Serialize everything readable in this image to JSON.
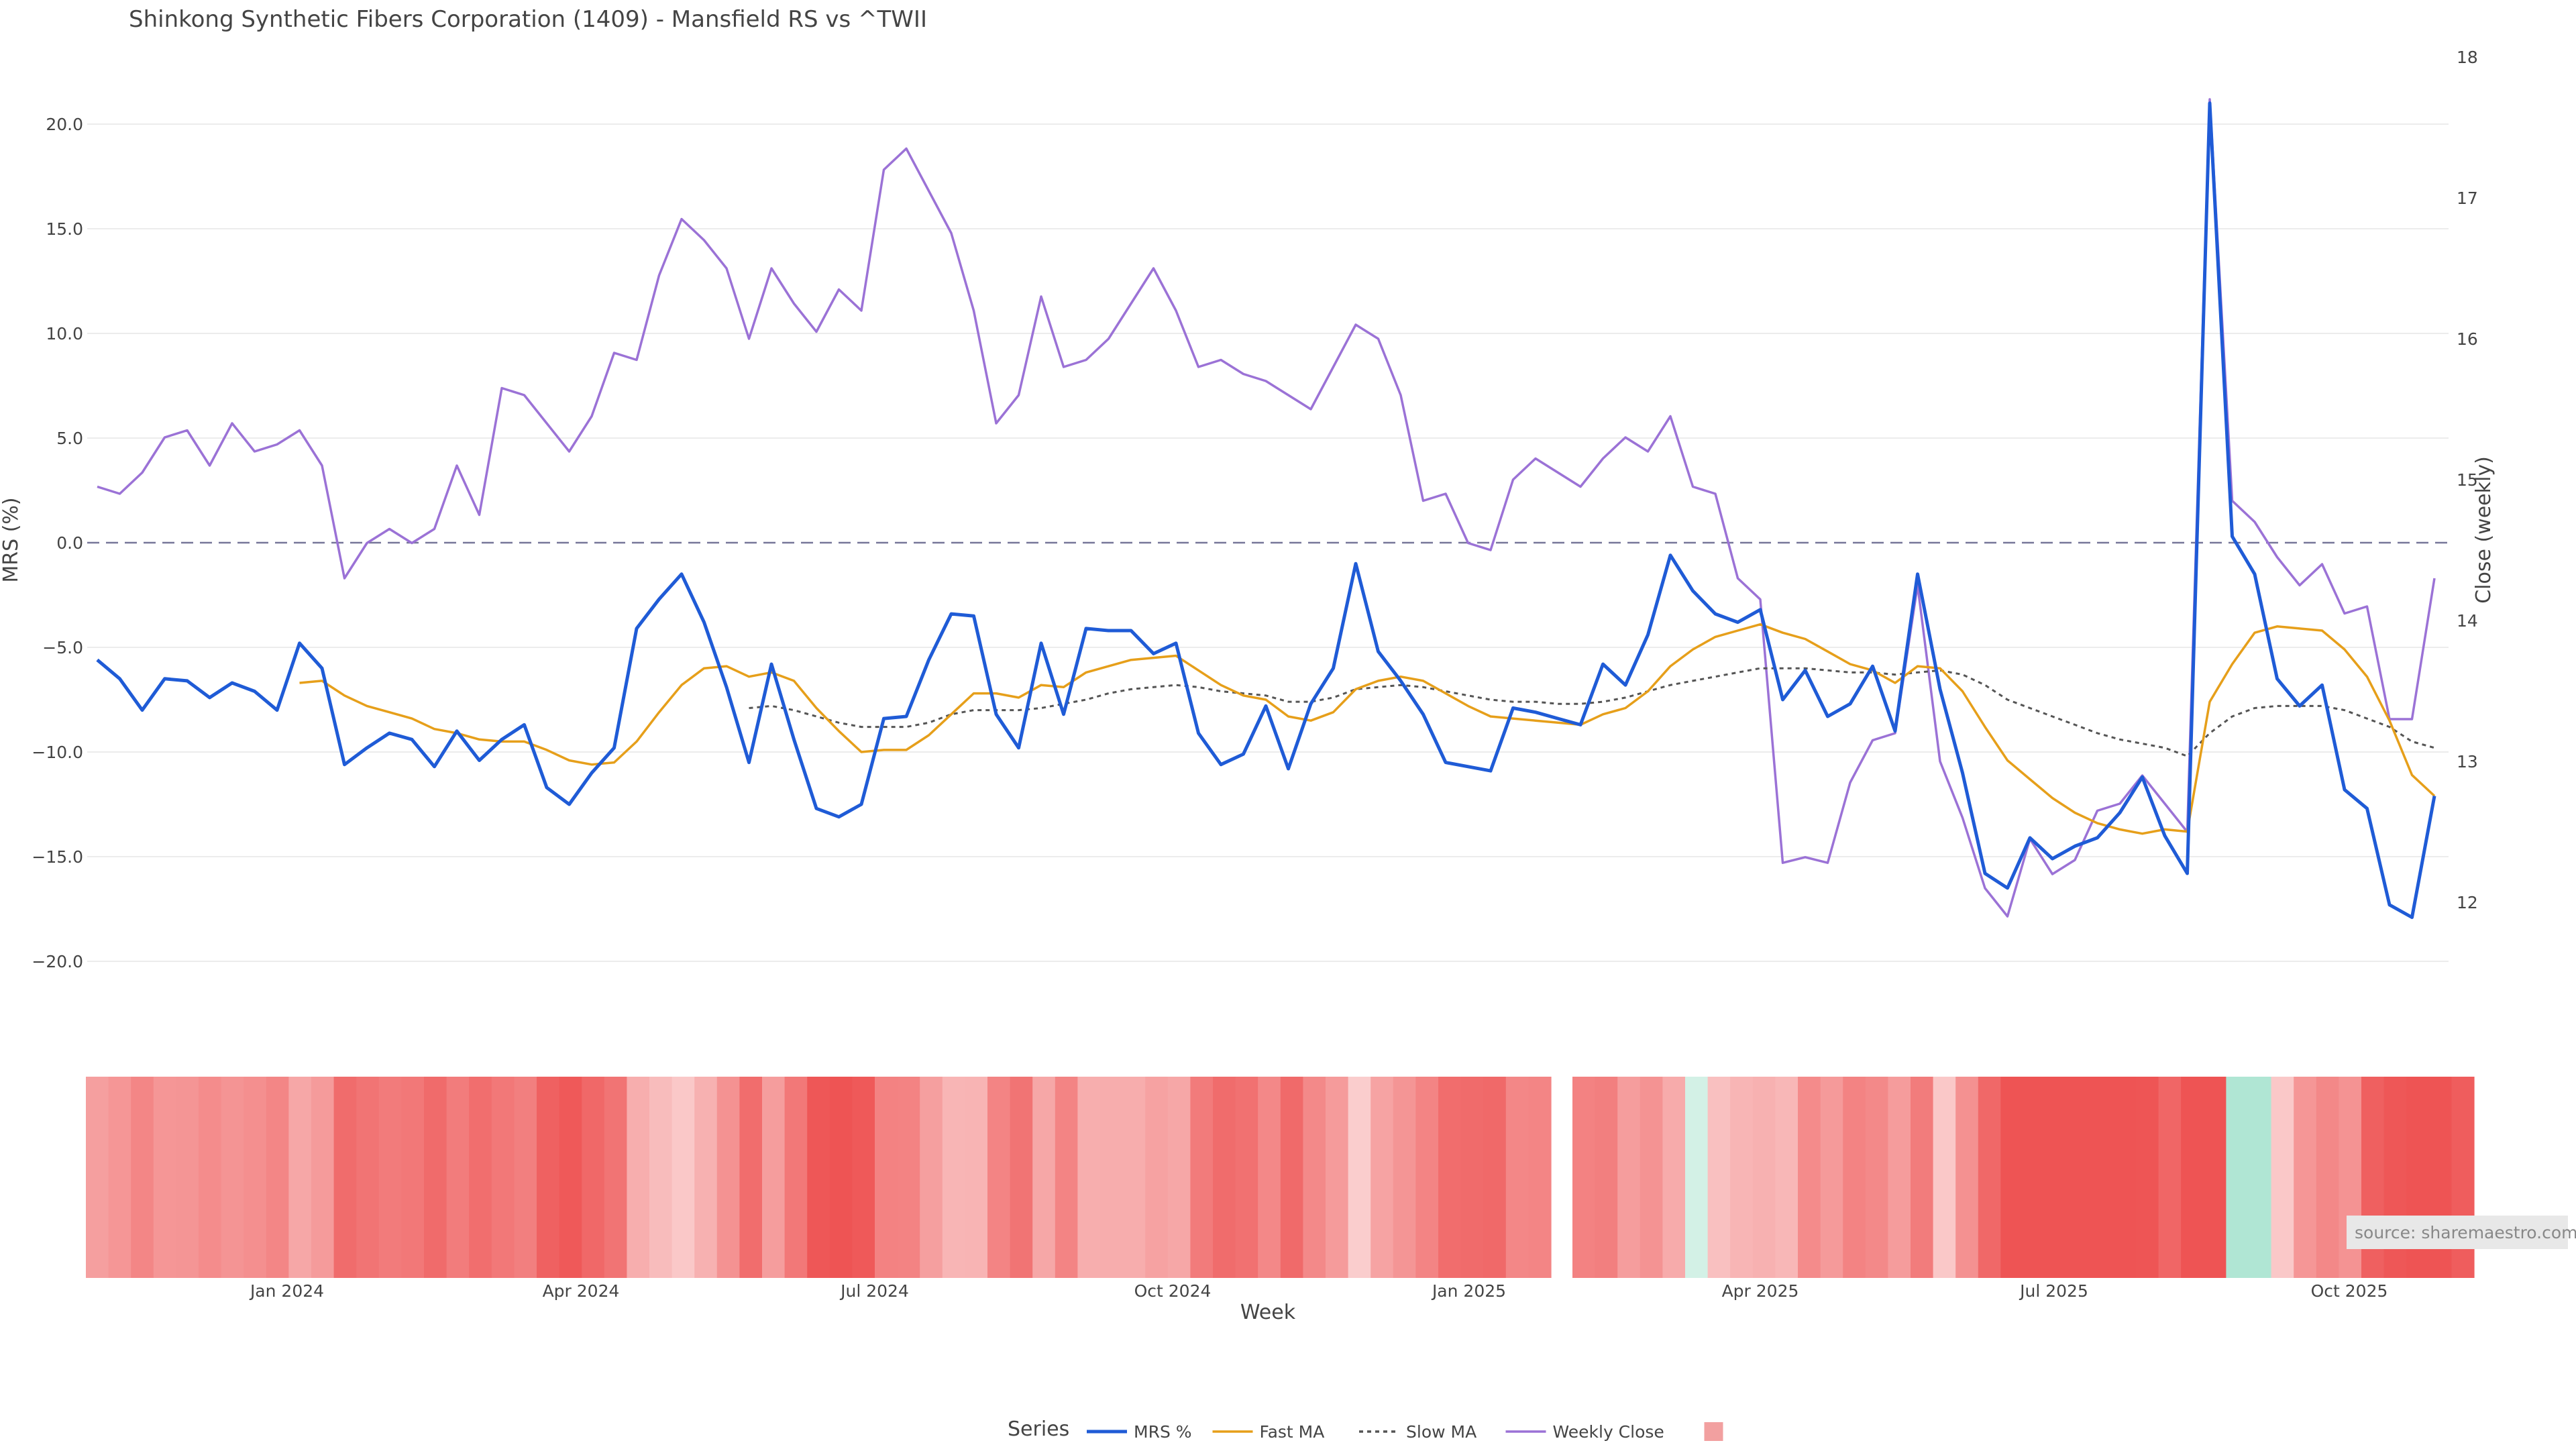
{
  "chart_data": {
    "type": "line",
    "title": "Shinkong Synthetic Fibers Corporation (1409) - Mansfield RS vs ^TWII",
    "xlabel": "Week",
    "ylabel": "MRS (%)",
    "y2label": "Close (weekly)",
    "ylim": [
      -24,
      22
    ],
    "y2lim": [
      11.5,
      18
    ],
    "yticks": [
      "20.0",
      "15.0",
      "10.0",
      "5.0",
      "0.0",
      "−5.0",
      "−10.0",
      "−15.0",
      "−20.0"
    ],
    "y2ticks": [
      "18",
      "17",
      "16",
      "15",
      "14",
      "13",
      "12"
    ],
    "xticks": [
      "Jan 2024",
      "Apr 2024",
      "Jul 2024",
      "Oct 2024",
      "Jan 2025",
      "Apr 2025",
      "Jul 2025",
      "Oct 2025"
    ],
    "x_start": "2023-11-06",
    "legend": {
      "title": "Series",
      "placement": "bottom-center"
    },
    "source_note": "source: sharemaestro.com",
    "zero_line": true,
    "series": [
      {
        "name": "MRS %",
        "color": "#1f5bd6",
        "style": "solid",
        "axis": "left",
        "values": [
          -5.6,
          -6.5,
          -8.0,
          -6.5,
          -6.6,
          -7.4,
          -6.7,
          -7.1,
          -8.0,
          -4.8,
          -6.0,
          -10.6,
          -9.8,
          -9.1,
          -9.4,
          -10.7,
          -9.0,
          -10.4,
          -9.4,
          -8.7,
          -11.7,
          -12.5,
          -11.0,
          -9.8,
          -4.1,
          -2.7,
          -1.5,
          -3.8,
          -6.9,
          -10.5,
          -5.8,
          -9.4,
          -12.7,
          -13.1,
          -12.5,
          -8.4,
          -8.3,
          -5.6,
          -3.4,
          -3.5,
          -8.2,
          -9.8,
          -4.8,
          -8.2,
          -4.1,
          -4.2,
          -4.2,
          -5.3,
          -4.8,
          -9.1,
          -10.6,
          -10.1,
          -7.8,
          -10.8,
          -7.7,
          -6.0,
          -1.0,
          -5.2,
          -6.6,
          -8.2,
          -10.5,
          -10.7,
          -10.9,
          -7.9,
          -8.1,
          -8.4,
          -8.7,
          -5.8,
          -6.8,
          -4.4,
          -0.6,
          -2.3,
          -3.4,
          -3.8,
          -3.2,
          -7.5,
          -6.1,
          -8.3,
          -7.7,
          -5.9,
          -9.0,
          -1.5,
          -7.0,
          -11.0,
          -15.8,
          -16.5,
          -14.1,
          -15.1,
          -14.5,
          -14.1,
          -12.9,
          -11.2,
          -14.0,
          -15.8,
          21.0,
          0.3,
          -1.5,
          -6.5,
          -7.8,
          -6.8,
          -11.8,
          -12.7,
          -17.3,
          -17.9,
          -12.1
        ]
      },
      {
        "name": "Fast MA",
        "color": "#e69f1a",
        "style": "solid",
        "axis": "left",
        "values": [
          null,
          null,
          null,
          null,
          null,
          null,
          null,
          null,
          null,
          -6.7,
          -6.6,
          -7.3,
          -7.8,
          -8.1,
          -8.4,
          -8.9,
          -9.1,
          -9.4,
          -9.5,
          -9.5,
          -9.9,
          -10.4,
          -10.6,
          -10.5,
          -9.5,
          -8.1,
          -6.8,
          -6.0,
          -5.9,
          -6.4,
          -6.2,
          -6.6,
          -7.9,
          -9.0,
          -10.0,
          -9.9,
          -9.9,
          -9.2,
          -8.2,
          -7.2,
          -7.2,
          -7.4,
          -6.8,
          -6.9,
          -6.2,
          -5.9,
          -5.6,
          -5.5,
          -5.4,
          -6.1,
          -6.8,
          -7.3,
          -7.5,
          -8.3,
          -8.5,
          -8.1,
          -7.0,
          -6.6,
          -6.4,
          -6.6,
          -7.2,
          -7.8,
          -8.3,
          -8.4,
          -8.5,
          -8.6,
          -8.7,
          -8.2,
          -7.9,
          -7.1,
          -5.9,
          -5.1,
          -4.5,
          -4.2,
          -3.9,
          -4.3,
          -4.6,
          -5.2,
          -5.8,
          -6.1,
          -6.7,
          -5.9,
          -6.0,
          -7.1,
          -8.8,
          -10.4,
          -11.3,
          -12.2,
          -12.9,
          -13.4,
          -13.7,
          -13.9,
          -13.7,
          -13.8,
          -7.6,
          -5.8,
          -4.3,
          -4.0,
          -4.1,
          -4.2,
          -5.1,
          -6.4,
          -8.5,
          -11.1,
          -12.1
        ]
      },
      {
        "name": "Slow MA",
        "color": "#555555",
        "style": "dotted",
        "axis": "left",
        "values": [
          null,
          null,
          null,
          null,
          null,
          null,
          null,
          null,
          null,
          null,
          null,
          null,
          null,
          null,
          null,
          null,
          null,
          null,
          null,
          null,
          null,
          null,
          null,
          null,
          null,
          null,
          null,
          null,
          null,
          -7.9,
          -7.8,
          -8.0,
          -8.3,
          -8.6,
          -8.8,
          -8.8,
          -8.8,
          -8.6,
          -8.2,
          -8.0,
          -8.0,
          -8.0,
          -7.9,
          -7.7,
          -7.5,
          -7.2,
          -7.0,
          -6.9,
          -6.8,
          -6.9,
          -7.1,
          -7.2,
          -7.3,
          -7.6,
          -7.6,
          -7.4,
          -7.0,
          -6.9,
          -6.8,
          -6.9,
          -7.1,
          -7.3,
          -7.5,
          -7.6,
          -7.6,
          -7.7,
          -7.7,
          -7.6,
          -7.4,
          -7.1,
          -6.8,
          -6.6,
          -6.4,
          -6.2,
          -6.0,
          -6.0,
          -6.0,
          -6.1,
          -6.2,
          -6.2,
          -6.3,
          -6.2,
          -6.1,
          -6.3,
          -6.8,
          -7.5,
          -7.9,
          -8.3,
          -8.7,
          -9.1,
          -9.4,
          -9.6,
          -9.8,
          -10.2,
          -9.1,
          -8.3,
          -7.9,
          -7.8,
          -7.8,
          -7.8,
          -8.0,
          -8.4,
          -8.8,
          -9.5,
          -9.8
        ]
      },
      {
        "name": "Weekly Close",
        "color": "#9b72d6",
        "style": "solid",
        "axis": "right",
        "values": [
          14.95,
          14.9,
          15.05,
          15.3,
          15.35,
          15.1,
          15.4,
          15.2,
          15.25,
          15.35,
          15.1,
          14.3,
          14.55,
          14.65,
          14.55,
          14.65,
          15.1,
          14.75,
          15.65,
          15.6,
          15.4,
          15.2,
          15.45,
          15.9,
          15.85,
          16.45,
          16.85,
          16.7,
          16.5,
          16.0,
          16.5,
          16.25,
          16.05,
          16.35,
          16.2,
          17.2,
          17.35,
          17.05,
          16.75,
          16.2,
          15.4,
          15.6,
          16.3,
          15.8,
          15.85,
          16.0,
          16.25,
          16.5,
          16.2,
          15.8,
          15.85,
          15.75,
          15.7,
          15.6,
          15.5,
          15.8,
          16.1,
          16.0,
          15.6,
          14.85,
          14.9,
          14.55,
          14.5,
          15.0,
          15.15,
          15.05,
          14.95,
          15.15,
          15.3,
          15.2,
          15.45,
          14.95,
          14.9,
          14.3,
          14.15,
          12.28,
          12.32,
          12.28,
          12.85,
          13.15,
          13.2,
          14.25,
          13.0,
          12.6,
          12.1,
          11.9,
          12.45,
          12.2,
          12.3,
          12.65,
          12.7,
          12.9,
          12.7,
          12.5,
          17.7,
          14.85,
          14.7,
          14.45,
          14.25,
          14.4,
          14.05,
          14.1,
          13.3,
          13.3,
          14.3
        ]
      }
    ],
    "heatmap": {
      "colorscale": "red-to-green",
      "gap_after_index": 64,
      "values": [
        -5.6,
        -6.5,
        -8.0,
        -6.5,
        -6.6,
        -7.4,
        -6.7,
        -7.1,
        -8.0,
        -4.8,
        -6.0,
        -10.6,
        -9.8,
        -9.1,
        -9.4,
        -10.7,
        -9.0,
        -10.4,
        -9.4,
        -8.7,
        -11.7,
        -12.5,
        -11.0,
        -9.8,
        -4.1,
        -2.7,
        -1.5,
        -3.8,
        -6.9,
        -10.5,
        -5.8,
        -9.4,
        -12.7,
        -13.1,
        -12.5,
        -8.4,
        -8.3,
        -5.6,
        -3.4,
        -3.5,
        -8.2,
        -9.8,
        -4.8,
        -8.2,
        -4.1,
        -4.2,
        -4.2,
        -5.3,
        -4.8,
        -9.1,
        -10.6,
        -10.1,
        -7.8,
        -10.8,
        -7.7,
        -6.0,
        -1.0,
        -5.2,
        -6.6,
        -8.2,
        -10.5,
        -10.7,
        -10.9,
        -7.9,
        -8.1,
        -8.4,
        -8.7,
        -5.8,
        -6.8,
        -4.4,
        -0.6,
        -2.3,
        -3.4,
        -3.8,
        -3.2,
        -7.5,
        -6.1,
        -8.3,
        -7.7,
        -5.9,
        -9.0,
        -1.5,
        -7.0,
        -11.0,
        -15.8,
        -16.5,
        -14.1,
        -15.1,
        -14.5,
        -14.1,
        -12.9,
        -11.2,
        -14.0,
        -15.8,
        21.0,
        0.3,
        -1.5,
        -6.5,
        -7.8,
        -6.8,
        -11.8,
        -12.7,
        -17.3,
        -17.9,
        -12.1
      ]
    }
  }
}
